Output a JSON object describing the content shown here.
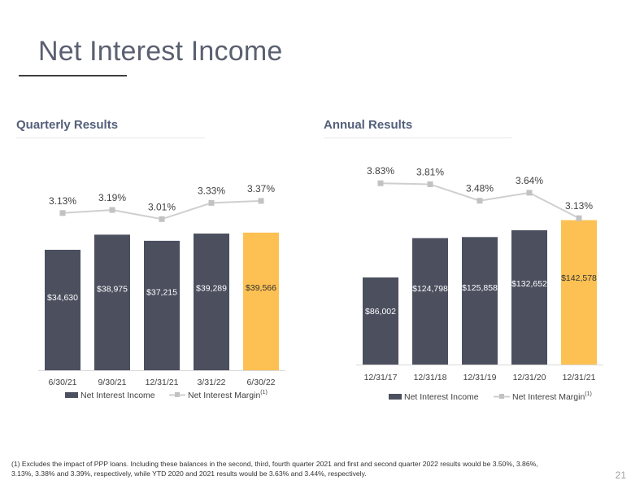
{
  "title": "Net Interest Income",
  "page_number": "21",
  "footnote": "(1) Excludes the impact of PPP loans.  Including these balances in the second, third, fourth quarter 2021  and first and second quarter 2022 results would be 3.50%, 3.86%, 3.13%, 3.38% and 3.39%, respectively, while YTD 2020 and 2021 results would be 3.63% and 3.44%, respectively.",
  "colors": {
    "bar": "#4b4f5e",
    "highlight": "#fcc152",
    "line": "#cfcfcf",
    "marker": "#c2c2c2"
  },
  "chart_data": [
    {
      "type": "bar",
      "title": "Quarterly Results",
      "categories": [
        "6/30/21",
        "9/30/21",
        "12/31/21",
        "3/31/22",
        "6/30/22"
      ],
      "series": [
        {
          "name": "Net Interest Income",
          "values": [
            34630,
            38975,
            37215,
            39289,
            39566
          ],
          "labels": [
            "$34,630",
            "$38,975",
            "$37,215",
            "$39,289",
            "$39,566"
          ]
        },
        {
          "name": "Net Interest Margin",
          "values": [
            3.13,
            3.19,
            3.01,
            3.33,
            3.37
          ],
          "labels": [
            "3.13%",
            "3.19%",
            "3.01%",
            "3.33%",
            "3.37%"
          ]
        }
      ],
      "legend_superscript": "(1)",
      "legend_position": "bottom",
      "highlight_index": 4
    },
    {
      "type": "bar",
      "title": "Annual Results",
      "categories": [
        "12/31/17",
        "12/31/18",
        "12/31/19",
        "12/31/20",
        "12/31/21"
      ],
      "series": [
        {
          "name": "Net Interest Income",
          "values": [
            86002,
            124798,
            125858,
            132652,
            142578
          ],
          "labels": [
            "$86,002",
            "$124,798",
            "$125,858",
            "$132,652",
            "$142,578"
          ]
        },
        {
          "name": "Net Interest Margin",
          "values": [
            3.83,
            3.81,
            3.48,
            3.64,
            3.13
          ],
          "labels": [
            "3.83%",
            "3.81%",
            "3.48%",
            "3.64%",
            "3.13%"
          ]
        }
      ],
      "legend_superscript": "(1)",
      "legend_position": "bottom",
      "highlight_index": 4
    }
  ]
}
